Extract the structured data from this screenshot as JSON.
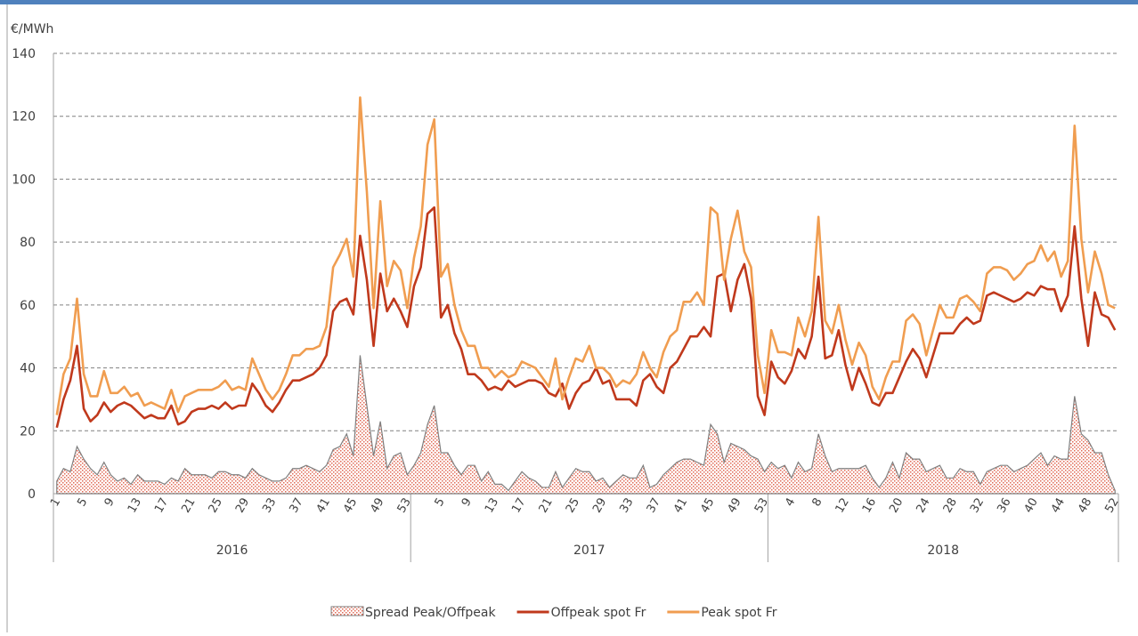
{
  "chart_data": {
    "type": "line",
    "y_label": "€/MWh",
    "groups": [
      {
        "name": "2016",
        "categories": [
          1,
          null,
          null,
          null,
          5,
          null,
          null,
          null,
          9,
          null,
          null,
          null,
          13,
          null,
          null,
          null,
          17,
          null,
          null,
          null,
          21,
          null,
          null,
          null,
          25,
          null,
          null,
          null,
          29,
          null,
          null,
          null,
          33,
          null,
          null,
          null,
          37,
          null,
          null,
          null,
          41,
          null,
          null,
          null,
          45,
          null,
          null,
          null,
          49,
          null,
          null,
          null,
          53
        ]
      },
      {
        "name": "2017",
        "categories": [
          null,
          null,
          null,
          null,
          5,
          null,
          null,
          null,
          9,
          null,
          null,
          null,
          13,
          null,
          null,
          null,
          17,
          null,
          null,
          null,
          21,
          null,
          null,
          null,
          25,
          null,
          null,
          null,
          29,
          null,
          null,
          null,
          33,
          null,
          null,
          null,
          37,
          null,
          null,
          null,
          41,
          null,
          null,
          null,
          45,
          null,
          null,
          null,
          49,
          null,
          null,
          null,
          53
        ]
      },
      {
        "name": "2018",
        "categories": [
          null,
          null,
          null,
          4,
          null,
          null,
          null,
          8,
          null,
          null,
          null,
          12,
          null,
          null,
          null,
          16,
          null,
          null,
          null,
          20,
          null,
          null,
          null,
          24,
          null,
          null,
          null,
          28,
          null,
          null,
          null,
          32,
          null,
          null,
          null,
          36,
          null,
          null,
          null,
          40,
          null,
          null,
          null,
          44,
          null,
          null,
          null,
          48,
          null,
          null,
          null,
          52
        ]
      }
    ],
    "series": [
      {
        "name": "Spread Peak/Offpeak",
        "kind": "area",
        "color": "#f2b8aa",
        "line_color": "#7f7f7f",
        "values": [
          4,
          8,
          7,
          15,
          11,
          8,
          6,
          10,
          6,
          4,
          5,
          3,
          6,
          4,
          4,
          4,
          3,
          5,
          4,
          8,
          6,
          6,
          6,
          5,
          7,
          7,
          6,
          6,
          5,
          8,
          6,
          5,
          4,
          4,
          5,
          8,
          8,
          9,
          8,
          7,
          9,
          14,
          15,
          19,
          12,
          44,
          28,
          12,
          23,
          8,
          12,
          13,
          6,
          9,
          13,
          22,
          28,
          13,
          13,
          9,
          6,
          9,
          9,
          4,
          7,
          3,
          3,
          1,
          4,
          7,
          5,
          4,
          2,
          2,
          7,
          2,
          5,
          8,
          7,
          7,
          4,
          5,
          2,
          4,
          6,
          5,
          5,
          9,
          2,
          3,
          6,
          8,
          10,
          11,
          11,
          10,
          9,
          22,
          19,
          10,
          16,
          15,
          14,
          12,
          11,
          7,
          10,
          8,
          9,
          5,
          10,
          7,
          8,
          19,
          12,
          7,
          8,
          8,
          8,
          8,
          9,
          5,
          2,
          5,
          10,
          5,
          13,
          11,
          11,
          7,
          8,
          9,
          5,
          5,
          8,
          7,
          7,
          3,
          7,
          8,
          9,
          9,
          7,
          8,
          9,
          11,
          13,
          9,
          12,
          11,
          11,
          31,
          19,
          17,
          13,
          13,
          6,
          1
        ]
      },
      {
        "name": "Offpeak spot Fr",
        "kind": "line",
        "color": "#c0391c",
        "values": [
          21,
          30,
          36,
          47,
          27,
          23,
          25,
          29,
          26,
          28,
          29,
          28,
          26,
          24,
          25,
          24,
          24,
          28,
          22,
          23,
          26,
          27,
          27,
          28,
          27,
          29,
          27,
          28,
          28,
          35,
          32,
          28,
          26,
          29,
          33,
          36,
          36,
          37,
          38,
          40,
          44,
          58,
          61,
          62,
          57,
          82,
          68,
          47,
          70,
          58,
          62,
          58,
          53,
          66,
          72,
          89,
          91,
          56,
          60,
          51,
          46,
          38,
          38,
          36,
          33,
          34,
          33,
          36,
          34,
          35,
          36,
          36,
          35,
          32,
          31,
          35,
          27,
          32,
          35,
          36,
          40,
          35,
          36,
          30,
          30,
          30,
          28,
          36,
          38,
          34,
          32,
          40,
          42,
          46,
          50,
          50,
          53,
          50,
          69,
          70,
          58,
          68,
          73,
          62,
          31,
          25,
          42,
          37,
          35,
          39,
          46,
          43,
          50,
          69,
          43,
          44,
          52,
          41,
          33,
          40,
          35,
          29,
          28,
          32,
          32,
          37,
          42,
          46,
          43,
          37,
          44,
          51,
          51,
          51,
          54,
          56,
          54,
          55,
          63,
          64,
          63,
          62,
          61,
          62,
          64,
          63,
          66,
          65,
          65,
          58,
          63,
          85,
          62,
          47,
          64,
          57,
          56,
          52
        ]
      },
      {
        "name": "Peak spot Fr",
        "kind": "line",
        "color": "#f09d50",
        "values": [
          25,
          38,
          43,
          62,
          38,
          31,
          31,
          39,
          32,
          32,
          34,
          31,
          32,
          28,
          29,
          28,
          27,
          33,
          26,
          31,
          32,
          33,
          33,
          33,
          34,
          36,
          33,
          34,
          33,
          43,
          38,
          33,
          30,
          33,
          38,
          44,
          44,
          46,
          46,
          47,
          53,
          72,
          76,
          81,
          69,
          126,
          96,
          59,
          93,
          66,
          74,
          71,
          59,
          75,
          85,
          111,
          119,
          69,
          73,
          60,
          52,
          47,
          47,
          40,
          40,
          37,
          39,
          37,
          38,
          42,
          41,
          40,
          37,
          34,
          43,
          30,
          37,
          43,
          42,
          47,
          40,
          40,
          38,
          34,
          36,
          35,
          38,
          45,
          40,
          37,
          45,
          50,
          52,
          61,
          61,
          64,
          60,
          91,
          89,
          68,
          81,
          90,
          77,
          72,
          44,
          32,
          52,
          45,
          45,
          44,
          56,
          50,
          58,
          88,
          55,
          51,
          60,
          49,
          41,
          48,
          44,
          34,
          30,
          37,
          42,
          42,
          55,
          57,
          54,
          44,
          52,
          60,
          56,
          56,
          62,
          63,
          61,
          58,
          70,
          72,
          72,
          71,
          68,
          70,
          73,
          74,
          79,
          74,
          77,
          69,
          74,
          117,
          81,
          64,
          77,
          70,
          60,
          59
        ]
      }
    ],
    "ylim": [
      0,
      140
    ],
    "yticks": [
      0,
      20,
      40,
      60,
      80,
      100,
      120,
      140
    ],
    "grid": true,
    "legend": "bottom"
  }
}
